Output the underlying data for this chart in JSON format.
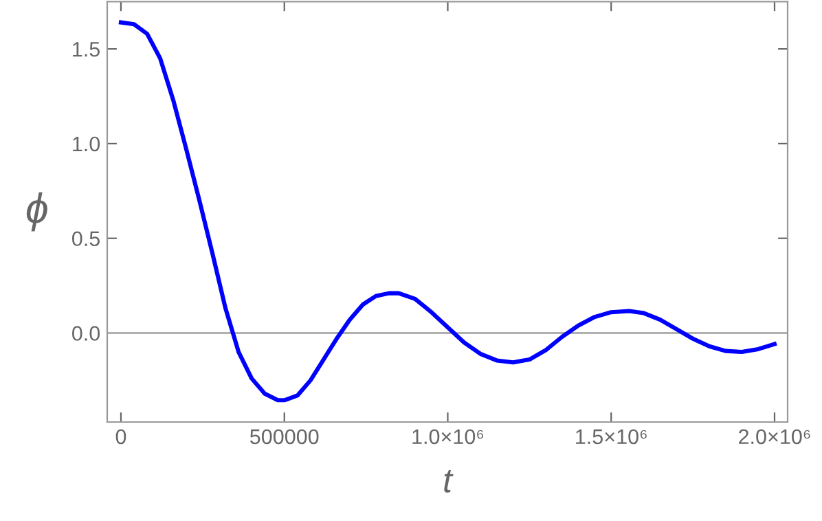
{
  "chart_data": {
    "type": "line",
    "xlabel": "t",
    "ylabel": "ϕ",
    "x": [
      0,
      40000,
      80000,
      120000,
      160000,
      200000,
      240000,
      280000,
      320000,
      360000,
      400000,
      440000,
      480000,
      500000,
      540000,
      580000,
      620000,
      660000,
      700000,
      740000,
      780000,
      820000,
      850000,
      900000,
      950000,
      1000000,
      1050000,
      1100000,
      1150000,
      1200000,
      1250000,
      1300000,
      1350000,
      1400000,
      1450000,
      1500000,
      1555000,
      1600000,
      1650000,
      1700000,
      1750000,
      1800000,
      1850000,
      1900000,
      1950000,
      2000000
    ],
    "series": [
      {
        "color": "#0000ff",
        "values": [
          1.64,
          1.63,
          1.58,
          1.45,
          1.23,
          0.97,
          0.7,
          0.42,
          0.13,
          -0.1,
          -0.24,
          -0.32,
          -0.355,
          -0.355,
          -0.33,
          -0.25,
          -0.14,
          -0.03,
          0.07,
          0.15,
          0.195,
          0.21,
          0.21,
          0.18,
          0.11,
          0.03,
          -0.05,
          -0.11,
          -0.145,
          -0.155,
          -0.14,
          -0.09,
          -0.02,
          0.04,
          0.085,
          0.11,
          0.116,
          0.105,
          0.07,
          0.02,
          -0.03,
          -0.07,
          -0.095,
          -0.1,
          -0.085,
          -0.058
        ]
      }
    ],
    "xlim": [
      -42000,
      2040000
    ],
    "ylim": [
      -0.47,
      1.75
    ],
    "xticks": [
      0,
      500000,
      {
        "value": 1000000,
        "label": "1.0×10⁶"
      },
      {
        "value": 1500000,
        "label": "1.5×10⁶"
      },
      {
        "value": 2000000,
        "label": "2.0×10⁶"
      }
    ],
    "yticks": [
      {
        "value": 0,
        "label": "0.0"
      },
      {
        "value": 0.5,
        "label": "0.5"
      },
      {
        "value": 1,
        "label": "1.0"
      },
      {
        "value": 1.5,
        "label": "1.5"
      }
    ],
    "ref_lines": [
      {
        "axis": "y",
        "value": 0,
        "color": "#b0b0b0"
      }
    ],
    "grid": false,
    "legend": false,
    "marker": "none",
    "line_style": "solid"
  }
}
